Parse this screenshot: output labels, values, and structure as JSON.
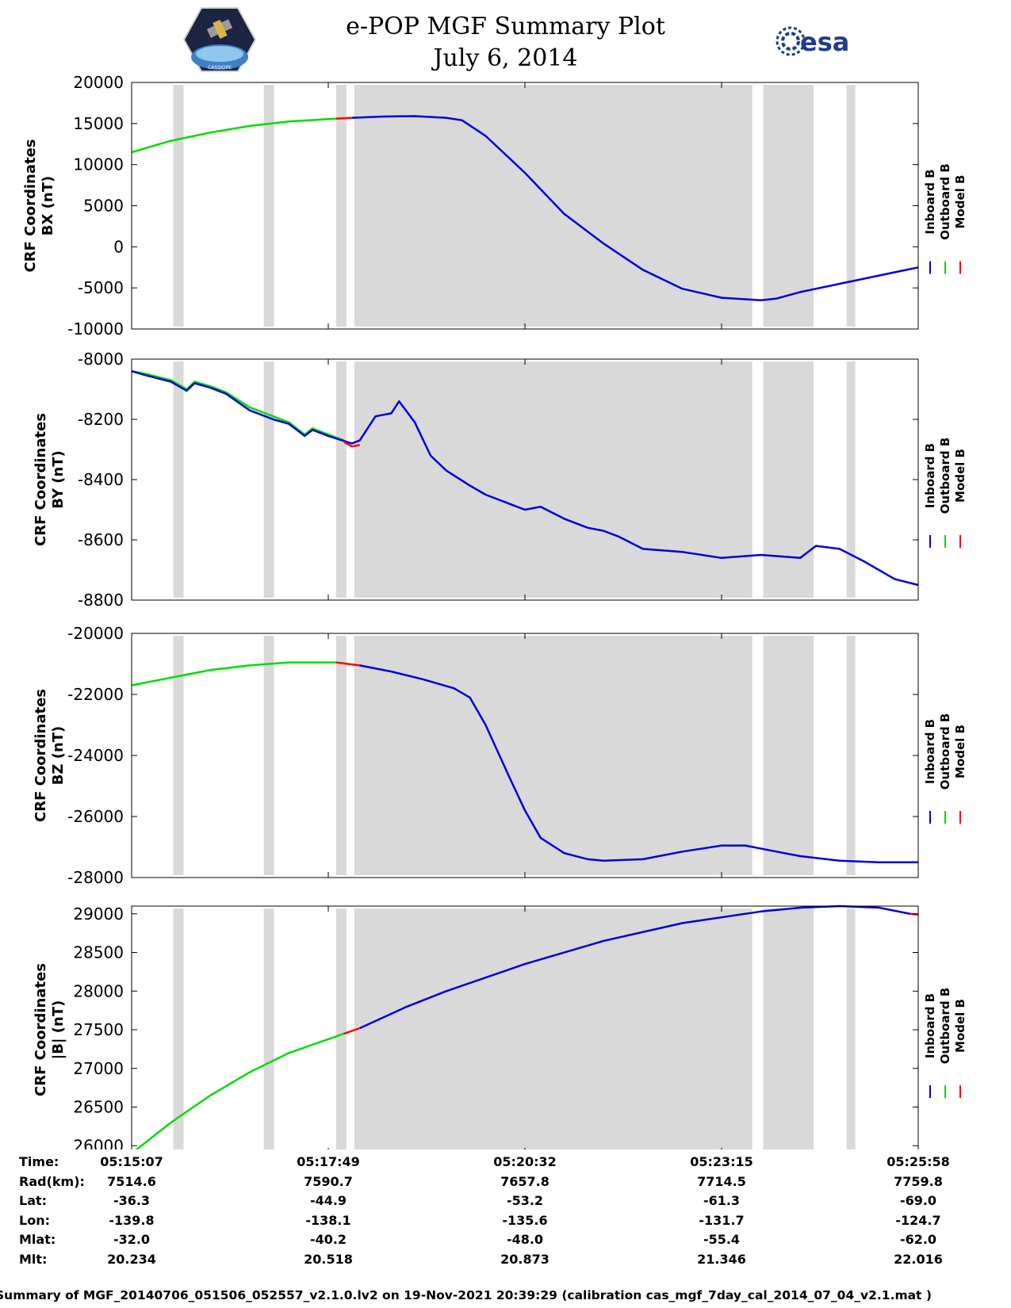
{
  "header": {
    "title_line1": "e-POP MGF Summary Plot",
    "title_line2": "July 6, 2014",
    "left_logo": "CASSIOPE",
    "right_logo": "esa"
  },
  "chart_data": [
    {
      "type": "line",
      "ylabel_line1": "CRF Coordinates",
      "ylabel_line2": "BX (nT)",
      "ylim": [
        -10000,
        20000
      ],
      "yticks": [
        "20000",
        "15000",
        "10000",
        "5000",
        "0",
        "-5000",
        "-10000"
      ],
      "legend": [
        "Inboard B",
        "Outboard B",
        "Model B"
      ],
      "series": [
        {
          "name": "Outboard B",
          "color": "#00dd00",
          "x": [
            0,
            0.05,
            0.1,
            0.15,
            0.2,
            0.26
          ],
          "values": [
            11500,
            12900,
            13900,
            14700,
            15250,
            15600
          ]
        },
        {
          "name": "Model B",
          "color": "#ff0000",
          "x": [
            0.26,
            0.28
          ],
          "values": [
            15600,
            15700
          ]
        },
        {
          "name": "Inboard B",
          "color": "#0000dd",
          "x": [
            0.28,
            0.32,
            0.36,
            0.4,
            0.42,
            0.45,
            0.5,
            0.55,
            0.6,
            0.65,
            0.7,
            0.75,
            0.8,
            0.82,
            0.85,
            0.9,
            0.95,
            1.0
          ],
          "values": [
            15700,
            15850,
            15900,
            15700,
            15400,
            13500,
            9000,
            4000,
            400,
            -2800,
            -5100,
            -6200,
            -6500,
            -6300,
            -5500,
            -4500,
            -3500,
            -2500
          ]
        }
      ]
    },
    {
      "type": "line",
      "ylabel_line1": "CRF Coordinates",
      "ylabel_line2": "BY (nT)",
      "ylim": [
        -8800,
        -8000
      ],
      "yticks": [
        "-8000",
        "-8200",
        "-8400",
        "-8600",
        "-8800"
      ],
      "legend": [
        "Inboard B",
        "Outboard B",
        "Model B"
      ],
      "series": [
        {
          "name": "Outboard B",
          "color": "#00dd00",
          "x": [
            0,
            0.02,
            0.05,
            0.07,
            0.08,
            0.1,
            0.12,
            0.15,
            0.18,
            0.2,
            0.22,
            0.23,
            0.25,
            0.27
          ],
          "values": [
            -8040,
            -8050,
            -8070,
            -8100,
            -8075,
            -8090,
            -8110,
            -8160,
            -8190,
            -8210,
            -8250,
            -8230,
            -8250,
            -8270
          ]
        },
        {
          "name": "Inboard B",
          "color": "#0000dd",
          "x": [
            0,
            0.02,
            0.05,
            0.07,
            0.08,
            0.1,
            0.12,
            0.15,
            0.18,
            0.2,
            0.22,
            0.23,
            0.25,
            0.28,
            0.29,
            0.31,
            0.33,
            0.34,
            0.36,
            0.38,
            0.4,
            0.43,
            0.45,
            0.48,
            0.5,
            0.52,
            0.55,
            0.58,
            0.6,
            0.62,
            0.65,
            0.7,
            0.75,
            0.8,
            0.85,
            0.87,
            0.9,
            0.93,
            0.95,
            0.97,
            1.0
          ],
          "values": [
            -8040,
            -8055,
            -8075,
            -8105,
            -8080,
            -8095,
            -8115,
            -8170,
            -8200,
            -8215,
            -8255,
            -8235,
            -8255,
            -8280,
            -8270,
            -8190,
            -8180,
            -8140,
            -8210,
            -8320,
            -8370,
            -8420,
            -8450,
            -8480,
            -8500,
            -8490,
            -8530,
            -8560,
            -8570,
            -8590,
            -8630,
            -8640,
            -8660,
            -8650,
            -8660,
            -8620,
            -8630,
            -8670,
            -8700,
            -8730,
            -8750
          ]
        },
        {
          "name": "Model B",
          "color": "#ff0000",
          "x": [
            0.27,
            0.28,
            0.29
          ],
          "values": [
            -8275,
            -8290,
            -8285
          ]
        }
      ]
    },
    {
      "type": "line",
      "ylabel_line1": "CRF Coordinates",
      "ylabel_line2": "BZ (nT)",
      "ylim": [
        -28000,
        -20000
      ],
      "yticks": [
        "-20000",
        "-22000",
        "-24000",
        "-26000",
        "-28000"
      ],
      "legend": [
        "Inboard B",
        "Outboard B",
        "Model B"
      ],
      "series": [
        {
          "name": "Outboard B",
          "color": "#00dd00",
          "x": [
            0,
            0.05,
            0.1,
            0.15,
            0.2,
            0.26
          ],
          "values": [
            -21700,
            -21450,
            -21200,
            -21050,
            -20950,
            -20950
          ]
        },
        {
          "name": "Model B",
          "color": "#ff0000",
          "x": [
            0.26,
            0.29
          ],
          "values": [
            -20950,
            -21050
          ]
        },
        {
          "name": "Inboard B",
          "color": "#0000dd",
          "x": [
            0.29,
            0.33,
            0.37,
            0.41,
            0.43,
            0.45,
            0.48,
            0.5,
            0.52,
            0.55,
            0.58,
            0.6,
            0.65,
            0.7,
            0.75,
            0.78,
            0.82,
            0.85,
            0.9,
            0.95,
            1.0
          ],
          "values": [
            -21050,
            -21250,
            -21500,
            -21800,
            -22100,
            -23000,
            -24700,
            -25800,
            -26700,
            -27200,
            -27400,
            -27450,
            -27400,
            -27150,
            -26950,
            -26950,
            -27150,
            -27300,
            -27450,
            -27500,
            -27500
          ]
        }
      ]
    },
    {
      "type": "line",
      "ylabel_line1": "CRF Coordinates",
      "ylabel_line2": "|B| (nT)",
      "ylim": [
        25900,
        29100
      ],
      "yticks": [
        "29000",
        "28500",
        "28000",
        "27500",
        "27000",
        "26500",
        "26000"
      ],
      "legend": [
        "Inboard B",
        "Outboard B",
        "Model B"
      ],
      "series": [
        {
          "name": "Outboard B",
          "color": "#00dd00",
          "x": [
            0,
            0.05,
            0.1,
            0.15,
            0.2,
            0.27
          ],
          "values": [
            25900,
            26300,
            26650,
            26950,
            27200,
            27450
          ]
        },
        {
          "name": "Model B",
          "color": "#ff0000",
          "x": [
            0.27,
            0.29
          ],
          "values": [
            27450,
            27520
          ]
        },
        {
          "name": "Inboard B",
          "color": "#0000dd",
          "x": [
            0.29,
            0.35,
            0.4,
            0.5,
            0.6,
            0.7,
            0.8,
            0.85,
            0.9,
            0.95,
            0.99
          ],
          "values": [
            27520,
            27800,
            28000,
            28350,
            28650,
            28880,
            29030,
            29080,
            29100,
            29080,
            29000
          ]
        },
        {
          "name": "Model B",
          "color": "#ff0000",
          "x": [
            0.99,
            1.0
          ],
          "values": [
            29000,
            28990
          ]
        }
      ]
    }
  ],
  "shading": {
    "color": "#d9d9d9",
    "bands": [
      [
        0.053,
        0.066
      ],
      [
        0.168,
        0.181
      ],
      [
        0.26,
        0.273
      ],
      [
        0.283,
        0.789
      ],
      [
        0.803,
        0.867
      ],
      [
        0.909,
        0.92
      ]
    ]
  },
  "xticks": [
    0,
    0.25,
    0.5,
    0.75,
    1.0
  ],
  "info_table": {
    "row_labels": [
      "Time:",
      "Rad(km):",
      "Lat:",
      "Lon:",
      "Mlat:",
      "Mlt:"
    ],
    "columns": [
      [
        "05:15:07",
        "7514.6",
        "-36.3",
        "-139.8",
        "-32.0",
        "20.234"
      ],
      [
        "05:17:49",
        "7590.7",
        "-44.9",
        "-138.1",
        "-40.2",
        "20.518"
      ],
      [
        "05:20:32",
        "7657.8",
        "-53.2",
        "-135.6",
        "-48.0",
        "20.873"
      ],
      [
        "05:23:15",
        "7714.5",
        "-61.3",
        "-131.7",
        "-55.4",
        "21.346"
      ],
      [
        "05:25:58",
        "7759.8",
        "-69.0",
        "-124.7",
        "-62.0",
        "22.016"
      ]
    ]
  },
  "footer": "Summary of MGF_20140706_051506_052557_v2.1.0.lv2 on 19-Nov-2021 20:39:29 (calibration cas_mgf_7day_cal_2014_07_04_v2.1.mat )"
}
